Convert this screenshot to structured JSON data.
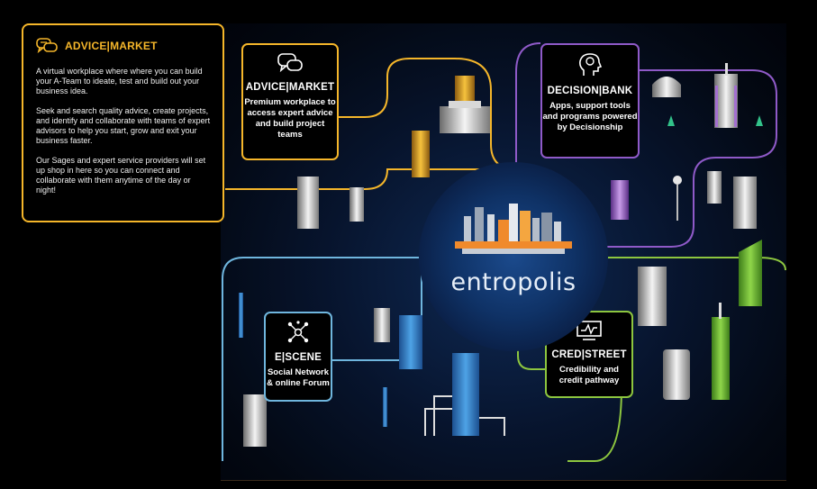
{
  "info_panel": {
    "title": "ADVICE|MARKET",
    "paragraphs": [
      "A virtual workplace where where you can build your A-Team to ideate, test and build out your business idea.",
      "Seek and search quality advice, create projects, and identify and collaborate with teams of expert advisors to help you start, grow and exit your business faster.",
      "Our Sages and expert service providers will set up shop in here so you can connect and collaborate with them anytime of the day or night!"
    ]
  },
  "center": {
    "logo_text": "entropolis"
  },
  "nodes": {
    "advice_market": {
      "title": "ADVICE|MARKET",
      "description": "Premium workplace to access expert advice and build project teams",
      "color": "#f5b62a",
      "icon": "chat-bubbles-icon"
    },
    "decision_bank": {
      "title": "DECISION|BANK",
      "description": "Apps, support tools and programs powered by Decisionship",
      "color": "#8f5ac8",
      "icon": "head-brain-icon"
    },
    "e_scene": {
      "title": "E|SCENE",
      "description": "Social Network & online Forum",
      "color": "#6fb6de",
      "icon": "network-icon"
    },
    "cred_street": {
      "title": "CRED|STREET",
      "description": "Credibility and credit pathway",
      "color": "#8dc63f",
      "icon": "monitor-chart-icon"
    }
  }
}
